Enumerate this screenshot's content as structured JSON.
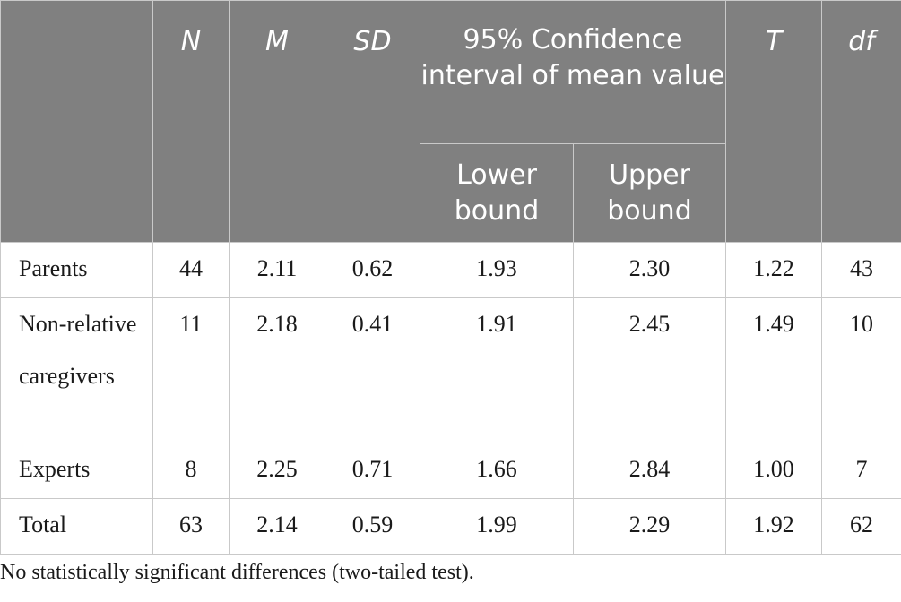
{
  "table": {
    "headers": {
      "n": "N",
      "m": "M",
      "sd": "SD",
      "ci": "95% Confidence interval of mean value",
      "lower": "Lower bound",
      "upper": "Upper bound",
      "t": "T",
      "df": "df"
    },
    "rows": [
      {
        "label": "Parents",
        "n": "44",
        "m": "2.11",
        "sd": "0.62",
        "lower": "1.93",
        "upper": "2.30",
        "t": "1.22",
        "df": "43"
      },
      {
        "label": "Non-relative caregivers",
        "n": "11",
        "m": "2.18",
        "sd": "0.41",
        "lower": "1.91",
        "upper": "2.45",
        "t": "1.49",
        "df": "10"
      },
      {
        "label": "Experts",
        "n": "8",
        "m": "2.25",
        "sd": "0.71",
        "lower": "1.66",
        "upper": "2.84",
        "t": "1.00",
        "df": "7"
      },
      {
        "label": "Total",
        "n": "63",
        "m": "2.14",
        "sd": "0.59",
        "lower": "1.99",
        "upper": "2.29",
        "t": "1.92",
        "df": "62"
      }
    ]
  },
  "note": "No statistically significant differences (two-tailed test)."
}
